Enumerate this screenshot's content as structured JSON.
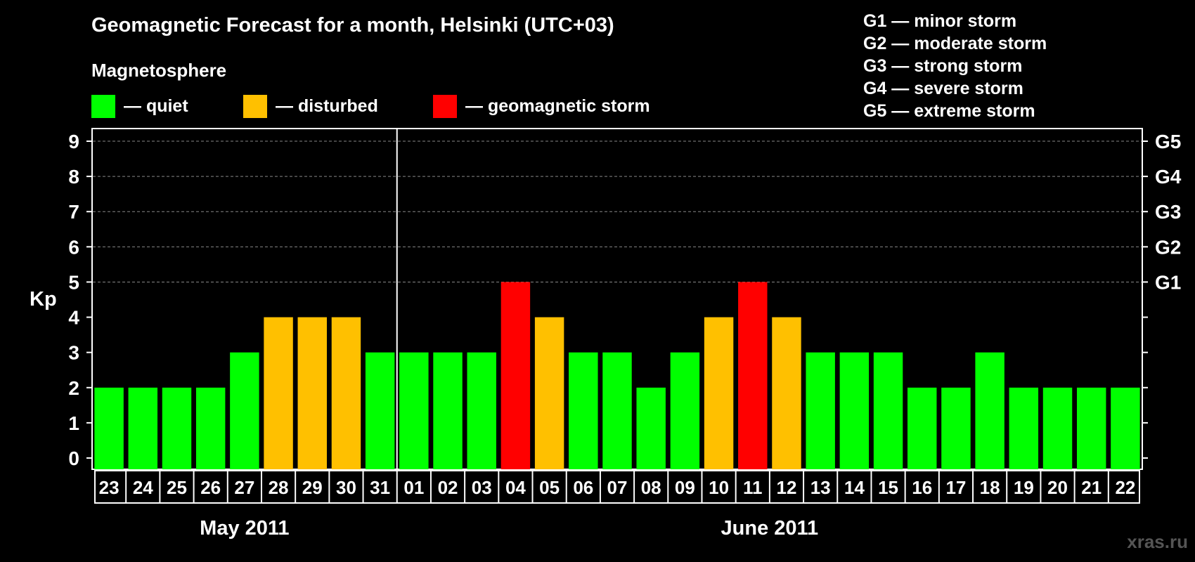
{
  "title": "Geomagnetic Forecast for a month, Helsinki (UTC+03)",
  "subtitle": "Magnetosphere",
  "legend": [
    {
      "label": "— quiet",
      "color": "#00ff00"
    },
    {
      "label": "— disturbed",
      "color": "#ffc000"
    },
    {
      "label": "— geomagnetic storm",
      "color": "#ff0000"
    }
  ],
  "g_scale": [
    "G1 — minor storm",
    "G2 — moderate storm",
    "G3 — strong storm",
    "G4 — severe storm",
    "G5 — extreme storm"
  ],
  "watermark": "xras.ru",
  "chart_data": {
    "type": "bar",
    "title": "Geomagnetic Forecast for a month, Helsinki (UTC+03)",
    "ylabel": "Kp",
    "ylim": [
      0,
      9
    ],
    "yticks": [
      "0",
      "1",
      "2",
      "3",
      "4",
      "5",
      "6",
      "7",
      "8",
      "9"
    ],
    "right_ticks": [
      {
        "value": 5,
        "label": "G1"
      },
      {
        "value": 6,
        "label": "G2"
      },
      {
        "value": 7,
        "label": "G3"
      },
      {
        "value": 8,
        "label": "G4"
      },
      {
        "value": 9,
        "label": "G5"
      }
    ],
    "categories": [
      "23",
      "24",
      "25",
      "26",
      "27",
      "28",
      "29",
      "30",
      "31",
      "01",
      "02",
      "03",
      "04",
      "05",
      "06",
      "07",
      "08",
      "09",
      "10",
      "11",
      "12",
      "13",
      "14",
      "15",
      "16",
      "17",
      "18",
      "19",
      "20",
      "21",
      "22"
    ],
    "values": [
      2,
      2,
      2,
      2,
      3,
      4,
      4,
      4,
      3,
      3,
      3,
      3,
      5,
      4,
      3,
      3,
      2,
      3,
      4,
      5,
      4,
      3,
      3,
      3,
      2,
      2,
      3,
      2,
      2,
      2,
      2
    ],
    "colors": {
      "quiet": "#00ff00",
      "disturbed": "#ffc000",
      "storm": "#ff0000"
    },
    "months": [
      {
        "label": "May 2011",
        "start": 0,
        "end": 8
      },
      {
        "label": "June 2011",
        "start": 9,
        "end": 30
      }
    ],
    "month_divider_after_index": 8
  }
}
